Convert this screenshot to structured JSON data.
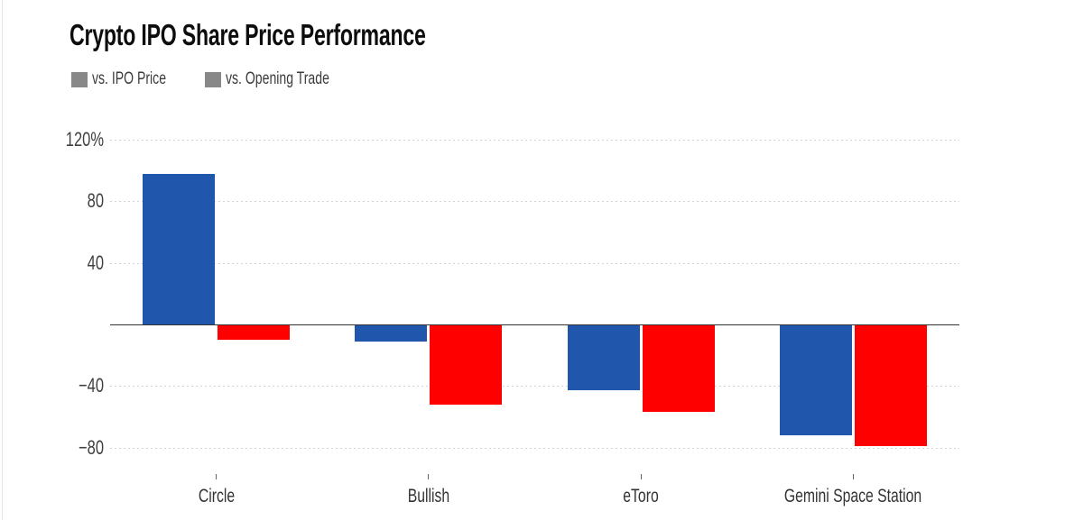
{
  "chart_data": {
    "type": "bar",
    "title": "Crypto IPO Share Price Performance",
    "categories": [
      "Circle",
      "Bullish",
      "eToro",
      "Gemini Space Station"
    ],
    "series": [
      {
        "name": "vs. IPO Price",
        "color": "#2056ac",
        "values": [
          98,
          -11,
          -43,
          -72
        ]
      },
      {
        "name": "vs. Opening Trade",
        "color": "#ff0000",
        "values": [
          -10,
          -52,
          -57,
          -79
        ]
      }
    ],
    "unit": "%",
    "ylim": [
      -92,
      120
    ],
    "yticks": [
      {
        "value": 120,
        "label": "120%"
      },
      {
        "value": 80,
        "label": "80"
      },
      {
        "value": 40,
        "label": "40"
      },
      {
        "value": -40,
        "label": "−40"
      },
      {
        "value": -80,
        "label": "−80"
      }
    ],
    "baseline_value": 0,
    "grid": "horizontal-dotted",
    "legend_position": "top-left",
    "colors": {
      "grid": "#d2d2d2",
      "baseline": "#333333",
      "axis_tick": "#666666",
      "axis_text": "#3f3f3f",
      "title_text": "#0d0d0d",
      "background": "#ffffff"
    }
  }
}
